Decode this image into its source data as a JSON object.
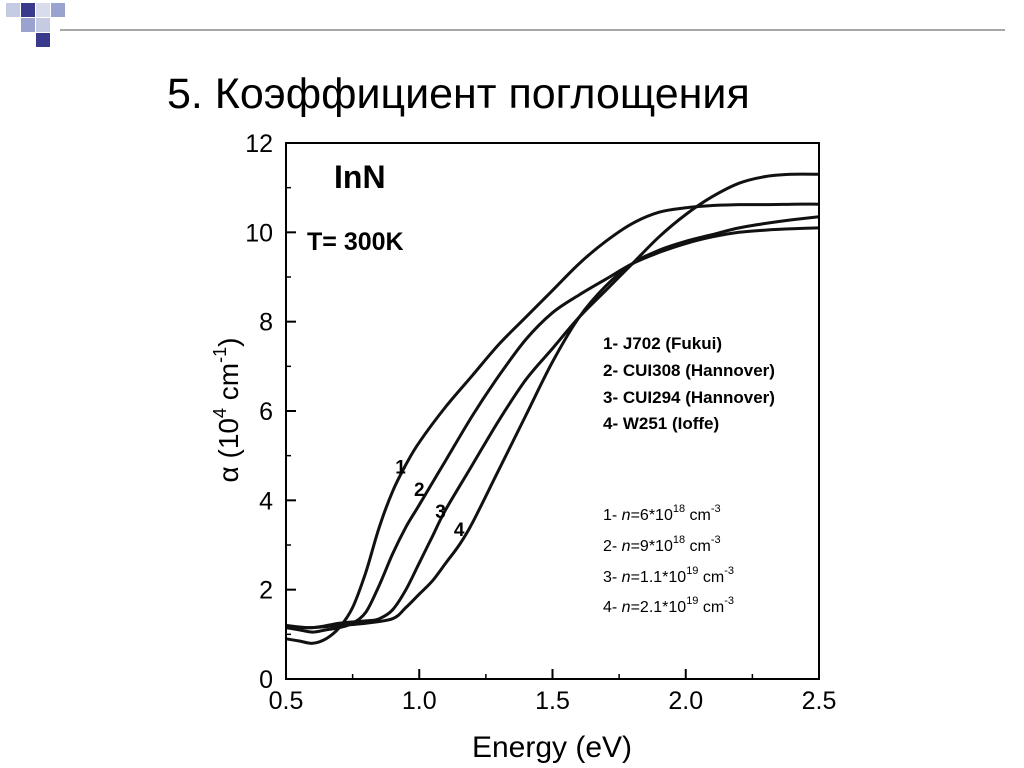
{
  "slide": {
    "title": "5. Коэффициент поглощения"
  },
  "chart_data": {
    "type": "line",
    "material_label": "InN",
    "temperature_label": "T= 300K",
    "xlabel": "Energy (eV)",
    "ylabel": {
      "prefix": "α (10",
      "exponent": "4",
      "middle": " cm",
      "exponent2": "-1",
      "suffix": ")"
    },
    "xlim": [
      0.5,
      2.5
    ],
    "ylim": [
      0,
      12
    ],
    "x_ticks": [
      {
        "value": 0.5,
        "label": "0.5"
      },
      {
        "value": 1.0,
        "label": "1.0"
      },
      {
        "value": 1.5,
        "label": "1.5"
      },
      {
        "value": 2.0,
        "label": "2.0"
      },
      {
        "value": 2.5,
        "label": "2.5"
      }
    ],
    "y_ticks": [
      {
        "value": 0,
        "label": "0"
      },
      {
        "value": 2,
        "label": "2"
      },
      {
        "value": 4,
        "label": "4"
      },
      {
        "value": 6,
        "label": "6"
      },
      {
        "value": 8,
        "label": "8"
      },
      {
        "value": 10,
        "label": "10"
      },
      {
        "value": 12,
        "label": "12"
      }
    ],
    "legend_position": "right",
    "legend": [
      "1- J702 (Fukui)",
      "2- CUI308 (Hannover)",
      "3- CUI294 (Hannover)",
      "4- W251 (Ioffe)"
    ],
    "densities": [
      {
        "prefix": "1- ",
        "n": "n",
        "rest": "=6*10",
        "exp": "18",
        "unit": " cm",
        "unit_exp": "-3"
      },
      {
        "prefix": "2- ",
        "n": "n",
        "rest": "=9*10",
        "exp": "18",
        "unit": " cm",
        "unit_exp": "-3"
      },
      {
        "prefix": "3- ",
        "n": "n",
        "rest": "=1.1*10",
        "exp": "19",
        "unit": " cm",
        "unit_exp": "-3"
      },
      {
        "prefix": "4- ",
        "n": "n",
        "rest": "=2.1*10",
        "exp": "19",
        "unit": " cm",
        "unit_exp": "-3"
      }
    ],
    "series": [
      {
        "label": "1",
        "label_at": [
          0.93,
          4.6
        ],
        "points": [
          [
            0.5,
            0.9
          ],
          [
            0.55,
            0.85
          ],
          [
            0.6,
            0.8
          ],
          [
            0.65,
            0.9
          ],
          [
            0.7,
            1.15
          ],
          [
            0.75,
            1.6
          ],
          [
            0.8,
            2.4
          ],
          [
            0.85,
            3.4
          ],
          [
            0.9,
            4.2
          ],
          [
            0.95,
            4.8
          ],
          [
            1.0,
            5.3
          ],
          [
            1.1,
            6.1
          ],
          [
            1.2,
            6.8
          ],
          [
            1.3,
            7.5
          ],
          [
            1.4,
            8.1
          ],
          [
            1.5,
            8.7
          ],
          [
            1.6,
            9.3
          ],
          [
            1.7,
            9.8
          ],
          [
            1.8,
            10.2
          ],
          [
            1.9,
            10.45
          ],
          [
            2.0,
            10.55
          ],
          [
            2.1,
            10.6
          ],
          [
            2.2,
            10.62
          ],
          [
            2.3,
            10.62
          ],
          [
            2.4,
            10.63
          ],
          [
            2.5,
            10.63
          ]
        ]
      },
      {
        "label": "2",
        "label_at": [
          1.0,
          4.1
        ],
        "points": [
          [
            0.5,
            1.15
          ],
          [
            0.55,
            1.1
          ],
          [
            0.6,
            1.05
          ],
          [
            0.65,
            1.1
          ],
          [
            0.7,
            1.15
          ],
          [
            0.75,
            1.25
          ],
          [
            0.8,
            1.5
          ],
          [
            0.85,
            2.1
          ],
          [
            0.9,
            2.8
          ],
          [
            0.95,
            3.4
          ],
          [
            1.0,
            3.9
          ],
          [
            1.1,
            4.9
          ],
          [
            1.2,
            5.9
          ],
          [
            1.3,
            6.8
          ],
          [
            1.4,
            7.6
          ],
          [
            1.5,
            8.2
          ],
          [
            1.6,
            8.6
          ],
          [
            1.7,
            8.95
          ],
          [
            1.8,
            9.3
          ],
          [
            1.9,
            9.55
          ],
          [
            2.0,
            9.75
          ],
          [
            2.1,
            9.9
          ],
          [
            2.2,
            10.0
          ],
          [
            2.3,
            10.05
          ],
          [
            2.4,
            10.08
          ],
          [
            2.5,
            10.1
          ]
        ]
      },
      {
        "label": "3",
        "label_at": [
          1.08,
          3.6
        ],
        "points": [
          [
            0.5,
            1.2
          ],
          [
            0.6,
            1.15
          ],
          [
            0.7,
            1.25
          ],
          [
            0.8,
            1.3
          ],
          [
            0.85,
            1.35
          ],
          [
            0.9,
            1.55
          ],
          [
            0.95,
            2.0
          ],
          [
            1.0,
            2.6
          ],
          [
            1.05,
            3.2
          ],
          [
            1.1,
            3.8
          ],
          [
            1.2,
            4.8
          ],
          [
            1.3,
            5.8
          ],
          [
            1.4,
            6.7
          ],
          [
            1.5,
            7.4
          ],
          [
            1.6,
            8.1
          ],
          [
            1.7,
            8.7
          ],
          [
            1.8,
            9.3
          ],
          [
            1.9,
            9.9
          ],
          [
            2.0,
            10.4
          ],
          [
            2.1,
            10.8
          ],
          [
            2.2,
            11.1
          ],
          [
            2.3,
            11.25
          ],
          [
            2.4,
            11.3
          ],
          [
            2.5,
            11.3
          ]
        ]
      },
      {
        "label": "4",
        "label_at": [
          1.15,
          3.2
        ],
        "points": [
          [
            0.5,
            1.15
          ],
          [
            0.6,
            1.15
          ],
          [
            0.7,
            1.2
          ],
          [
            0.8,
            1.25
          ],
          [
            0.9,
            1.35
          ],
          [
            0.95,
            1.6
          ],
          [
            1.0,
            1.9
          ],
          [
            1.05,
            2.2
          ],
          [
            1.1,
            2.6
          ],
          [
            1.15,
            3.0
          ],
          [
            1.2,
            3.5
          ],
          [
            1.3,
            4.7
          ],
          [
            1.4,
            5.9
          ],
          [
            1.5,
            7.1
          ],
          [
            1.6,
            8.1
          ],
          [
            1.7,
            8.8
          ],
          [
            1.8,
            9.3
          ],
          [
            1.9,
            9.6
          ],
          [
            2.0,
            9.8
          ],
          [
            2.1,
            9.95
          ],
          [
            2.2,
            10.1
          ],
          [
            2.3,
            10.2
          ],
          [
            2.4,
            10.28
          ],
          [
            2.5,
            10.35
          ]
        ]
      }
    ]
  }
}
